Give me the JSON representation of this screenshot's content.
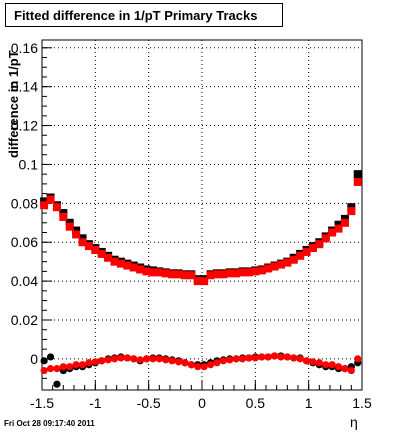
{
  "chart_data": {
    "type": "scatter",
    "title": "Fitted difference in 1/pT  Primary Tracks",
    "xlabel": "η",
    "ylabel": "difference in 1/pT",
    "xlim": [
      -1.5,
      1.5
    ],
    "ylim": [
      -0.016,
      0.164
    ],
    "x_ticks": [
      "-1.5",
      "-1",
      "-0.5",
      "0",
      "0.5",
      "1",
      "1.5"
    ],
    "y_ticks": [
      "0",
      "0.02",
      "0.04",
      "0.06",
      "0.08",
      "0.1",
      "0.12",
      "0.14",
      "0.16"
    ],
    "grid": true,
    "colors": {
      "black_series": "#000000",
      "red_series": "#ff0000"
    },
    "series": [
      {
        "marker": "square",
        "color": "#000000",
        "x": [
          -1.48,
          -1.42,
          -1.36,
          -1.3,
          -1.24,
          -1.18,
          -1.12,
          -1.06,
          -1.0,
          -0.94,
          -0.88,
          -0.82,
          -0.76,
          -0.7,
          -0.64,
          -0.58,
          -0.52,
          -0.46,
          -0.4,
          -0.34,
          -0.28,
          -0.22,
          -0.16,
          -0.1,
          -0.04,
          0.02,
          0.08,
          0.14,
          0.2,
          0.26,
          0.32,
          0.38,
          0.44,
          0.5,
          0.56,
          0.62,
          0.68,
          0.74,
          0.8,
          0.86,
          0.92,
          0.98,
          1.04,
          1.1,
          1.16,
          1.22,
          1.28,
          1.34,
          1.4,
          1.46
        ],
        "y": [
          0.081,
          0.083,
          0.079,
          0.075,
          0.07,
          0.066,
          0.062,
          0.059,
          0.057,
          0.055,
          0.053,
          0.051,
          0.05,
          0.049,
          0.048,
          0.047,
          0.046,
          0.0455,
          0.045,
          0.0445,
          0.044,
          0.044,
          0.0435,
          0.0435,
          0.041,
          0.041,
          0.0435,
          0.044,
          0.044,
          0.0445,
          0.0445,
          0.045,
          0.045,
          0.0455,
          0.046,
          0.047,
          0.048,
          0.049,
          0.05,
          0.052,
          0.054,
          0.056,
          0.058,
          0.06,
          0.063,
          0.066,
          0.069,
          0.072,
          0.078,
          0.095
        ]
      },
      {
        "marker": "square",
        "color": "#ff0000",
        "x": [
          -1.48,
          -1.42,
          -1.36,
          -1.3,
          -1.24,
          -1.18,
          -1.12,
          -1.06,
          -1.0,
          -0.94,
          -0.88,
          -0.82,
          -0.76,
          -0.7,
          -0.64,
          -0.58,
          -0.52,
          -0.46,
          -0.4,
          -0.34,
          -0.28,
          -0.22,
          -0.16,
          -0.1,
          -0.04,
          0.02,
          0.08,
          0.14,
          0.2,
          0.26,
          0.32,
          0.38,
          0.44,
          0.5,
          0.56,
          0.62,
          0.68,
          0.74,
          0.8,
          0.86,
          0.92,
          0.98,
          1.04,
          1.1,
          1.16,
          1.22,
          1.28,
          1.34,
          1.4,
          1.46
        ],
        "y": [
          0.079,
          0.082,
          0.078,
          0.073,
          0.068,
          0.064,
          0.06,
          0.058,
          0.056,
          0.054,
          0.052,
          0.05,
          0.049,
          0.048,
          0.047,
          0.046,
          0.045,
          0.0445,
          0.0445,
          0.044,
          0.0435,
          0.0435,
          0.043,
          0.043,
          0.04,
          0.04,
          0.043,
          0.0435,
          0.0435,
          0.044,
          0.044,
          0.0445,
          0.0445,
          0.045,
          0.0455,
          0.0465,
          0.0475,
          0.0485,
          0.0495,
          0.051,
          0.053,
          0.055,
          0.057,
          0.059,
          0.062,
          0.065,
          0.067,
          0.07,
          0.076,
          0.091
        ]
      },
      {
        "marker": "circle",
        "color": "#000000",
        "x": [
          -1.48,
          -1.42,
          -1.36,
          -1.3,
          -1.24,
          -1.18,
          -1.12,
          -1.06,
          -1.0,
          -0.94,
          -0.88,
          -0.82,
          -0.76,
          -0.7,
          -0.64,
          -0.58,
          -0.52,
          -0.46,
          -0.4,
          -0.34,
          -0.28,
          -0.22,
          -0.16,
          -0.1,
          -0.04,
          0.02,
          0.08,
          0.14,
          0.2,
          0.26,
          0.32,
          0.38,
          0.44,
          0.5,
          0.56,
          0.62,
          0.68,
          0.74,
          0.8,
          0.86,
          0.92,
          0.98,
          1.04,
          1.1,
          1.16,
          1.22,
          1.28,
          1.34,
          1.4,
          1.46
        ],
        "y": [
          -0.001,
          0.001,
          -0.013,
          -0.006,
          -0.005,
          -0.004,
          -0.004,
          -0.003,
          -0.002,
          -0.001,
          0.0,
          0.0005,
          0.001,
          0.0005,
          0.0,
          -0.001,
          0.0,
          0.0005,
          0.0005,
          0.0,
          -0.0005,
          -0.001,
          -0.002,
          -0.003,
          -0.003,
          -0.003,
          -0.002,
          -0.001,
          -0.0005,
          0.0,
          0.0,
          0.0005,
          0.0005,
          0.001,
          0.001,
          0.001,
          0.0015,
          0.0015,
          0.001,
          0.0005,
          0.0005,
          -0.001,
          -0.002,
          -0.003,
          -0.004,
          -0.004,
          -0.005,
          -0.005,
          -0.004,
          -0.002
        ]
      },
      {
        "marker": "circle",
        "color": "#ff0000",
        "x": [
          -1.48,
          -1.42,
          -1.36,
          -1.3,
          -1.24,
          -1.18,
          -1.12,
          -1.06,
          -1.0,
          -0.94,
          -0.88,
          -0.82,
          -0.76,
          -0.7,
          -0.64,
          -0.58,
          -0.52,
          -0.46,
          -0.4,
          -0.34,
          -0.28,
          -0.22,
          -0.16,
          -0.1,
          -0.04,
          0.02,
          0.08,
          0.14,
          0.2,
          0.26,
          0.32,
          0.38,
          0.44,
          0.5,
          0.56,
          0.62,
          0.68,
          0.74,
          0.8,
          0.86,
          0.92,
          0.98,
          1.04,
          1.1,
          1.16,
          1.22,
          1.28,
          1.34,
          1.4,
          1.46
        ],
        "y": [
          -0.006,
          -0.005,
          -0.005,
          -0.004,
          -0.004,
          -0.003,
          -0.003,
          -0.002,
          -0.0015,
          -0.001,
          -0.0005,
          0.0,
          0.0005,
          0.0005,
          0.0,
          -0.0005,
          0.0,
          0.0,
          0.0,
          -0.0005,
          -0.001,
          -0.0015,
          -0.002,
          -0.003,
          -0.004,
          -0.004,
          -0.003,
          -0.002,
          -0.001,
          -0.0005,
          0.0,
          0.0,
          0.0005,
          0.0005,
          0.001,
          0.001,
          0.0015,
          0.001,
          0.001,
          0.0005,
          0.0,
          -0.001,
          -0.0015,
          -0.002,
          -0.003,
          -0.003,
          -0.004,
          -0.005,
          -0.006,
          0.0
        ]
      }
    ]
  },
  "footer": {
    "timestamp": "Fri Oct 28 09:17:40 2011"
  }
}
